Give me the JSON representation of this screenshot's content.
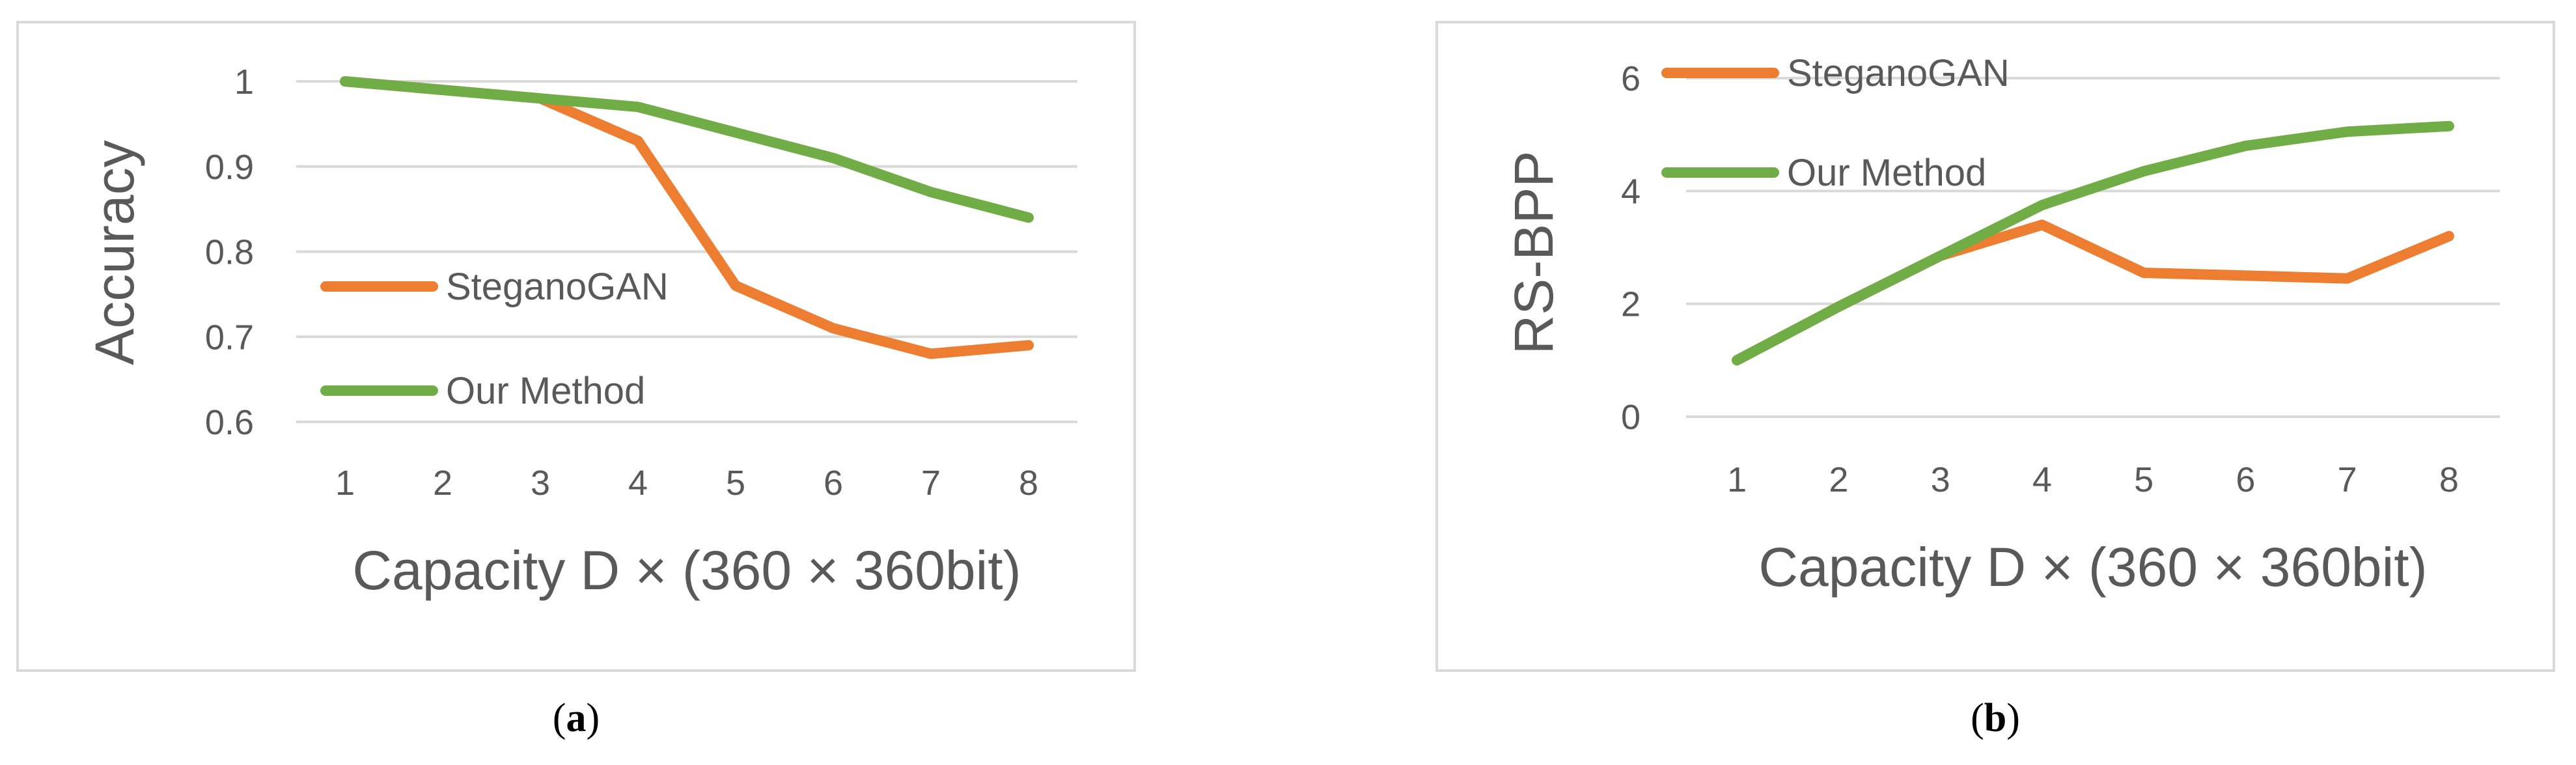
{
  "chart_data": [
    {
      "type": "line",
      "panel": "a",
      "caption_open": "(",
      "caption_letter": "a",
      "caption_close": ")",
      "x": [
        1,
        2,
        3,
        4,
        5,
        6,
        7,
        8
      ],
      "x_ticks": [
        "1",
        "2",
        "3",
        "4",
        "5",
        "6",
        "7",
        "8"
      ],
      "y_ticks": [
        "0.6",
        "0.7",
        "0.8",
        "0.9",
        "1"
      ],
      "ylim": [
        0.6,
        1.0
      ],
      "xlabel": "Capacity D × (360 × 360bit)",
      "ylabel": "Accuracy",
      "grid": true,
      "legend_position": "center-left",
      "series": [
        {
          "name": "SteganoGAN",
          "color": "#ed7d31",
          "values": [
            1.0,
            0.99,
            0.98,
            0.93,
            0.76,
            0.71,
            0.68,
            0.69
          ]
        },
        {
          "name": "Our Method",
          "color": "#70ad47",
          "values": [
            1.0,
            0.99,
            0.98,
            0.97,
            0.94,
            0.91,
            0.87,
            0.84
          ]
        }
      ]
    },
    {
      "type": "line",
      "panel": "b",
      "caption_open": "(",
      "caption_letter": "b",
      "caption_close": ")",
      "x": [
        1,
        2,
        3,
        4,
        5,
        6,
        7,
        8
      ],
      "x_ticks": [
        "1",
        "2",
        "3",
        "4",
        "5",
        "6",
        "7",
        "8"
      ],
      "y_ticks": [
        "0",
        "2",
        "4",
        "6"
      ],
      "ylim": [
        0,
        6
      ],
      "xlabel": "Capacity D × (360 × 360bit)",
      "ylabel": "RS-BPP",
      "grid": true,
      "legend_position": "top-left",
      "series": [
        {
          "name": "SteganoGAN",
          "color": "#ed7d31",
          "values": [
            1.0,
            1.95,
            2.85,
            3.4,
            2.55,
            2.5,
            2.45,
            3.2
          ]
        },
        {
          "name": "Our Method",
          "color": "#70ad47",
          "values": [
            1.0,
            1.95,
            2.85,
            3.75,
            4.35,
            4.8,
            5.05,
            5.15
          ]
        }
      ]
    }
  ]
}
